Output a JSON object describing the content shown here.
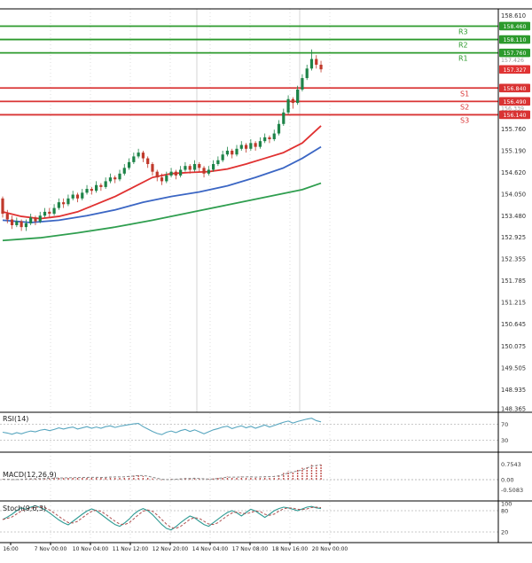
{
  "colors": {
    "candle_up": "#1d8348",
    "candle_down": "#c0392b",
    "ma_fast": "#e03131",
    "ma_mid": "#3b66c4",
    "ma_slow": "#2f9e4f",
    "resistance": "#2c9a2c",
    "support": "#d93333",
    "current_tag": "#e03333",
    "rsi": "#58a6bf",
    "stoch_k": "#2f9b94",
    "stoch_d": "#b05050",
    "macd_hist": "#c0504d"
  },
  "price_axis": {
    "ticks": [
      "158.610",
      "155.760",
      "155.190",
      "154.620",
      "154.050",
      "153.480",
      "152.925",
      "152.355",
      "151.785",
      "151.215",
      "150.645",
      "150.075",
      "149.505",
      "148.935",
      "148.365"
    ],
    "minor_labels": [
      "157.426",
      "156.339"
    ],
    "current_price": "157.327"
  },
  "levels": {
    "resistance": [
      {
        "name": "R3",
        "value": "158.460"
      },
      {
        "name": "R2",
        "value": "158.110"
      },
      {
        "name": "R1",
        "value": "157.760"
      }
    ],
    "support": [
      {
        "name": "S1",
        "value": "156.840"
      },
      {
        "name": "S2",
        "value": "156.490"
      },
      {
        "name": "S3",
        "value": "156.140"
      }
    ]
  },
  "chart_data": {
    "type": "candlestick",
    "ylim": [
      148.365,
      158.61
    ],
    "x_axis_labels": [
      "16:00",
      "7 Nov 00:00",
      "10 Nov 04:00",
      "11 Nov 12:00",
      "12 Nov 20:00",
      "14 Nov 04:00",
      "17 Nov 08:00",
      "18 Nov 16:00",
      "20 Nov 00:00"
    ],
    "candles": [
      [
        153.95,
        154.0,
        153.45,
        153.55
      ],
      [
        153.55,
        153.65,
        153.3,
        153.4
      ],
      [
        153.4,
        153.5,
        153.15,
        153.25
      ],
      [
        153.25,
        153.45,
        153.2,
        153.35
      ],
      [
        153.35,
        153.4,
        153.1,
        153.2
      ],
      [
        153.2,
        153.4,
        153.1,
        153.3
      ],
      [
        153.3,
        153.55,
        153.25,
        153.45
      ],
      [
        153.45,
        153.5,
        153.25,
        153.35
      ],
      [
        153.35,
        153.6,
        153.3,
        153.5
      ],
      [
        153.5,
        153.7,
        153.45,
        153.6
      ],
      [
        153.6,
        153.7,
        153.45,
        153.55
      ],
      [
        153.55,
        153.8,
        153.5,
        153.7
      ],
      [
        153.7,
        153.95,
        153.65,
        153.85
      ],
      [
        153.85,
        153.95,
        153.7,
        153.8
      ],
      [
        153.8,
        154.05,
        153.75,
        153.95
      ],
      [
        153.95,
        154.15,
        153.9,
        154.05
      ],
      [
        154.05,
        154.1,
        153.85,
        153.95
      ],
      [
        153.95,
        154.2,
        153.9,
        154.1
      ],
      [
        154.1,
        154.3,
        154.05,
        154.2
      ],
      [
        154.2,
        154.25,
        154.05,
        154.15
      ],
      [
        154.15,
        154.4,
        154.1,
        154.3
      ],
      [
        154.3,
        154.35,
        154.15,
        154.25
      ],
      [
        154.25,
        154.5,
        154.2,
        154.4
      ],
      [
        154.4,
        154.6,
        154.35,
        154.5
      ],
      [
        154.5,
        154.55,
        154.35,
        154.45
      ],
      [
        154.45,
        154.7,
        154.4,
        154.6
      ],
      [
        154.6,
        154.85,
        154.55,
        154.75
      ],
      [
        154.75,
        155.0,
        154.7,
        154.9
      ],
      [
        154.9,
        155.15,
        154.85,
        155.05
      ],
      [
        155.05,
        155.25,
        155.0,
        155.15
      ],
      [
        155.15,
        155.2,
        154.9,
        155.0
      ],
      [
        155.0,
        155.05,
        154.75,
        154.85
      ],
      [
        154.85,
        154.9,
        154.55,
        154.65
      ],
      [
        154.65,
        154.7,
        154.4,
        154.5
      ],
      [
        154.5,
        154.6,
        154.3,
        154.4
      ],
      [
        154.4,
        154.65,
        154.35,
        154.55
      ],
      [
        154.55,
        154.75,
        154.5,
        154.65
      ],
      [
        154.65,
        154.7,
        154.45,
        154.55
      ],
      [
        154.55,
        154.8,
        154.5,
        154.7
      ],
      [
        154.7,
        154.9,
        154.65,
        154.8
      ],
      [
        154.8,
        154.85,
        154.6,
        154.7
      ],
      [
        154.7,
        154.95,
        154.65,
        154.85
      ],
      [
        154.85,
        154.9,
        154.65,
        154.75
      ],
      [
        154.75,
        154.8,
        154.5,
        154.6
      ],
      [
        154.6,
        154.8,
        154.55,
        154.7
      ],
      [
        154.7,
        154.95,
        154.65,
        154.85
      ],
      [
        154.85,
        155.05,
        154.8,
        154.95
      ],
      [
        154.95,
        155.2,
        154.9,
        155.1
      ],
      [
        155.1,
        155.3,
        155.05,
        155.2
      ],
      [
        155.2,
        155.25,
        155.0,
        155.1
      ],
      [
        155.1,
        155.35,
        155.05,
        155.25
      ],
      [
        155.25,
        155.45,
        155.2,
        155.35
      ],
      [
        155.35,
        155.4,
        155.15,
        155.25
      ],
      [
        155.25,
        155.5,
        155.2,
        155.4
      ],
      [
        155.4,
        155.45,
        155.2,
        155.3
      ],
      [
        155.3,
        155.55,
        155.25,
        155.45
      ],
      [
        155.45,
        155.65,
        155.4,
        155.55
      ],
      [
        155.55,
        155.6,
        155.4,
        155.5
      ],
      [
        155.5,
        155.75,
        155.45,
        155.65
      ],
      [
        155.65,
        156.0,
        155.6,
        155.9
      ],
      [
        155.9,
        156.3,
        155.85,
        156.2
      ],
      [
        156.2,
        156.65,
        156.15,
        156.55
      ],
      [
        156.55,
        156.6,
        156.3,
        156.45
      ],
      [
        156.45,
        156.9,
        156.4,
        156.8
      ],
      [
        156.8,
        157.2,
        156.75,
        157.1
      ],
      [
        157.1,
        157.45,
        157.05,
        157.35
      ],
      [
        157.35,
        157.85,
        157.3,
        157.6
      ],
      [
        157.6,
        157.7,
        157.35,
        157.45
      ],
      [
        157.45,
        157.55,
        157.25,
        157.33
      ]
    ],
    "moving_averages": {
      "fast": [
        [
          0,
          153.6
        ],
        [
          4,
          153.48
        ],
        [
          8,
          153.42
        ],
        [
          12,
          153.48
        ],
        [
          16,
          153.6
        ],
        [
          20,
          153.8
        ],
        [
          24,
          154.0
        ],
        [
          28,
          154.25
        ],
        [
          32,
          154.5
        ],
        [
          36,
          154.6
        ],
        [
          40,
          154.63
        ],
        [
          44,
          154.65
        ],
        [
          48,
          154.72
        ],
        [
          52,
          154.85
        ],
        [
          56,
          155.0
        ],
        [
          60,
          155.15
        ],
        [
          64,
          155.4
        ],
        [
          68,
          155.85
        ]
      ],
      "medium": [
        [
          0,
          153.38
        ],
        [
          6,
          153.32
        ],
        [
          12,
          153.38
        ],
        [
          18,
          153.5
        ],
        [
          24,
          153.65
        ],
        [
          30,
          153.85
        ],
        [
          36,
          154.0
        ],
        [
          42,
          154.12
        ],
        [
          48,
          154.28
        ],
        [
          54,
          154.5
        ],
        [
          60,
          154.75
        ],
        [
          64,
          155.0
        ],
        [
          68,
          155.3
        ]
      ],
      "slow": [
        [
          0,
          152.85
        ],
        [
          8,
          152.92
        ],
        [
          16,
          153.05
        ],
        [
          24,
          153.2
        ],
        [
          32,
          153.38
        ],
        [
          40,
          153.58
        ],
        [
          48,
          153.78
        ],
        [
          56,
          153.98
        ],
        [
          64,
          154.18
        ],
        [
          68,
          154.35
        ]
      ]
    },
    "indicators": {
      "rsi": {
        "label": "RSI(14)",
        "levels": [
          70,
          30
        ],
        "values": [
          50,
          48,
          45,
          49,
          46,
          50,
          53,
          51,
          55,
          57,
          54,
          57,
          61,
          58,
          61,
          63,
          58,
          61,
          64,
          60,
          63,
          60,
          64,
          66,
          62,
          65,
          67,
          69,
          71,
          72,
          64,
          58,
          52,
          47,
          44,
          50,
          53,
          49,
          54,
          57,
          52,
          56,
          51,
          46,
          51,
          56,
          59,
          63,
          65,
          59,
          63,
          66,
          61,
          65,
          60,
          64,
          68,
          63,
          67,
          71,
          75,
          78,
          73,
          77,
          80,
          83,
          85,
          79,
          76
        ]
      },
      "macd": {
        "label": "MACD(12,26,9)",
        "axis_labels": [
          "0.7543",
          "0.00",
          "-0.5083"
        ],
        "histogram": [
          0.02,
          0.01,
          -0.01,
          0.02,
          0.03,
          0.04,
          0.05,
          0.04,
          0.06,
          0.07,
          0.06,
          0.08,
          0.1,
          0.08,
          0.1,
          0.12,
          0.09,
          0.11,
          0.13,
          0.1,
          0.12,
          0.1,
          0.13,
          0.15,
          0.12,
          0.14,
          0.16,
          0.18,
          0.2,
          0.22,
          0.18,
          0.12,
          0.06,
          0.02,
          -0.02,
          0.01,
          0.04,
          0.02,
          0.05,
          0.08,
          0.05,
          0.08,
          0.04,
          0.01,
          0.03,
          0.06,
          0.09,
          0.12,
          0.15,
          0.1,
          0.13,
          0.16,
          0.12,
          0.15,
          0.11,
          0.14,
          0.17,
          0.13,
          0.18,
          0.25,
          0.33,
          0.42,
          0.38,
          0.48,
          0.58,
          0.66,
          0.73,
          0.7,
          0.78
        ]
      },
      "stoch": {
        "label": "Stoch(9,6,3)",
        "axis_labels": [
          "100",
          "80",
          "20"
        ],
        "k": [
          55,
          62,
          70,
          80,
          88,
          84,
          90,
          94,
          89,
          83,
          74,
          64,
          54,
          46,
          40,
          50,
          60,
          70,
          79,
          85,
          80,
          70,
          60,
          50,
          41,
          36,
          45,
          56,
          70,
          80,
          86,
          80,
          69,
          55,
          41,
          30,
          26,
          35,
          46,
          56,
          65,
          60,
          50,
          41,
          36,
          46,
          56,
          66,
          75,
          80,
          74,
          65,
          75,
          84,
          79,
          70,
          61,
          70,
          80,
          86,
          90,
          88,
          84,
          80,
          85,
          90,
          92,
          88,
          86
        ]
      }
    }
  }
}
